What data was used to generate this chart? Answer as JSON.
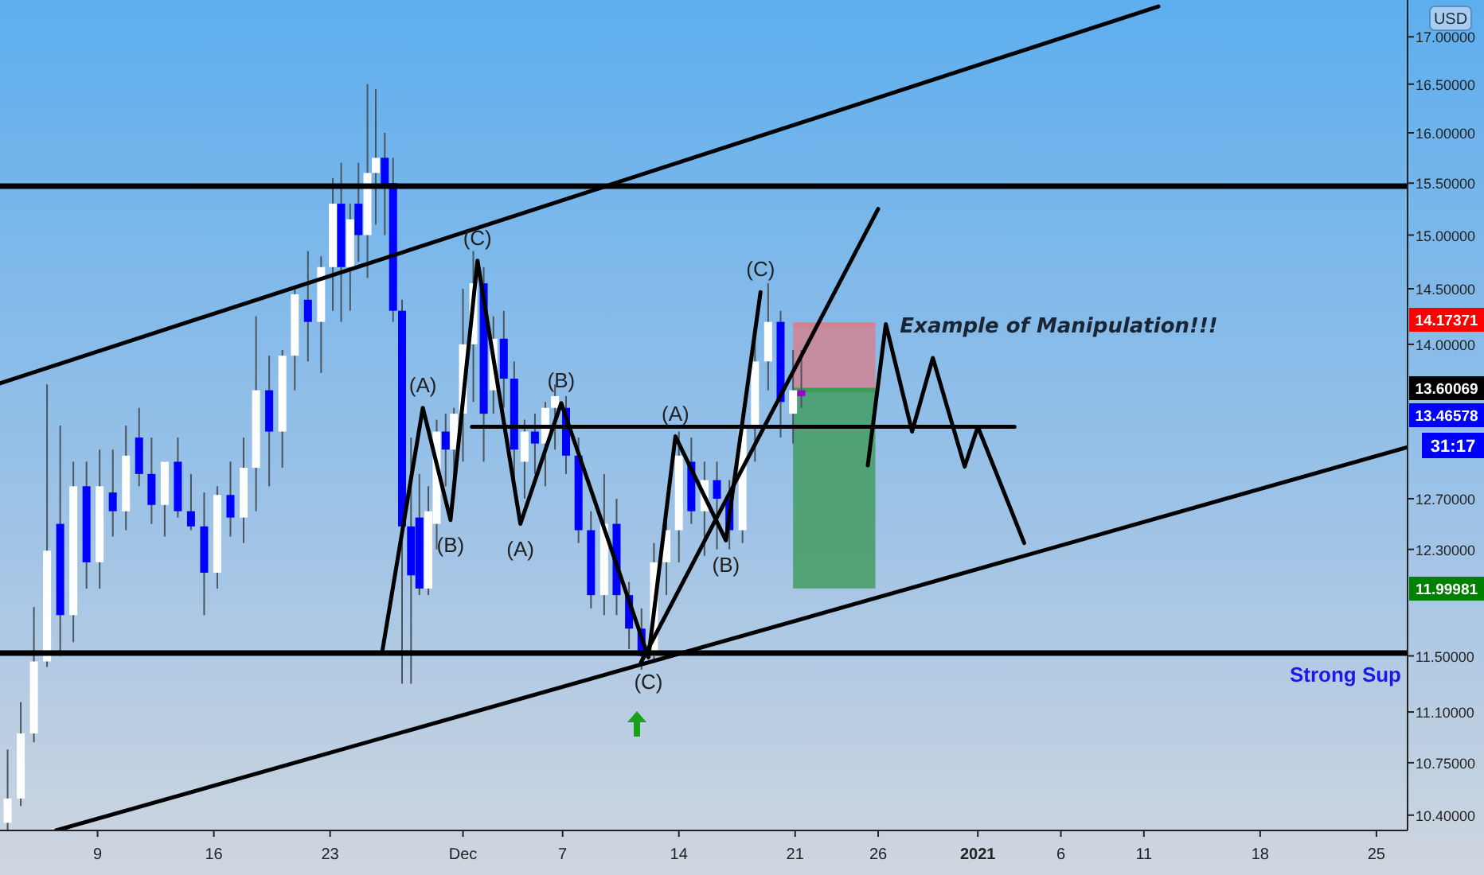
{
  "chart_data": {
    "type": "candlestick",
    "log": true,
    "xlim": [
      "2020-11-03T03:00",
      "2021-01-26T21:00"
    ],
    "ylim": [
      10.3,
      17.4
    ],
    "xticks": [
      {
        "value": "2020-11-09",
        "label": "9"
      },
      {
        "value": "2020-11-16",
        "label": "16"
      },
      {
        "value": "2020-11-23",
        "label": "23"
      },
      {
        "value": "2020-12-01",
        "label": "Dec"
      },
      {
        "value": "2020-12-07",
        "label": "7"
      },
      {
        "value": "2020-12-14",
        "label": "14"
      },
      {
        "value": "2020-12-21",
        "label": "21"
      },
      {
        "value": "2020-12-26",
        "label": "26"
      },
      {
        "value": "2021-01-01",
        "label": "2021"
      },
      {
        "value": "2021-01-06",
        "label": "6"
      },
      {
        "value": "2021-01-11",
        "label": "11"
      },
      {
        "value": "2021-01-18",
        "label": "18"
      },
      {
        "value": "2021-01-25",
        "label": "25"
      }
    ],
    "yticks": [
      {
        "value": 10.4,
        "label": "10.40000"
      },
      {
        "value": 10.75,
        "label": "10.75000"
      },
      {
        "value": 11.1,
        "label": "11.10000"
      },
      {
        "value": 11.5,
        "label": "11.50000"
      },
      {
        "value": 12.3,
        "label": "12.30000"
      },
      {
        "value": 12.7,
        "label": "12.70000"
      },
      {
        "value": 14,
        "label": "14.00000"
      },
      {
        "value": 14.5,
        "label": "14.50000"
      },
      {
        "value": 15,
        "label": "15.00000"
      },
      {
        "value": 15.5,
        "label": "15.50000"
      },
      {
        "value": 16,
        "label": "16.00000"
      },
      {
        "value": 16.5,
        "label": "16.50000"
      },
      {
        "value": 17,
        "label": "17.00000"
      }
    ],
    "ref_lines": [
      {
        "axis": "y",
        "value": 15.47,
        "color": "#000000"
      },
      {
        "axis": "y",
        "value": 11.52,
        "color": "#000000",
        "label": "Strong Sup"
      }
    ],
    "series": [
      {
        "x": [
          "2020-11-03T14:00",
          "2020-11-04T09:00",
          "2020-11-05T04:00",
          "2020-11-05T23:00",
          "2020-11-06T18:00",
          "2020-11-07T13:00",
          "2020-11-08T08:00",
          "2020-11-09T03:00",
          "2020-11-09T22:00",
          "2020-11-10T17:00",
          "2020-11-11T12:00",
          "2020-11-12T06:00",
          "2020-11-13T01:00",
          "2020-11-13T20:00",
          "2020-11-14T15:00",
          "2020-11-15T10:00",
          "2020-11-16T05:00",
          "2020-11-17T00:00",
          "2020-11-17T19:00",
          "2020-11-18T13:00",
          "2020-11-19T08:00",
          "2020-11-20T03:00",
          "2020-11-20T21:00",
          "2020-11-21T16:00",
          "2020-11-22T11:00",
          "2020-11-23T04:00",
          "2020-11-23T16:00",
          "2020-11-24T05:00",
          "2020-11-24T17:00",
          "2020-11-25T06:00",
          "2020-11-25T18:00",
          "2020-11-26T07:00",
          "2020-11-26T19:00",
          "2020-11-27T08:00",
          "2020-11-27T21:00",
          "2020-11-28T09:00",
          "2020-11-28T22:00",
          "2020-11-29T10:00",
          "2020-11-29T23:00",
          "2020-11-30T11:00",
          "2020-12-01T00:00",
          "2020-12-01T15:00",
          "2020-12-02T06:00",
          "2020-12-02T20:00",
          "2020-12-03T11:00",
          "2020-12-04T02:00",
          "2020-12-04T17:00",
          "2020-12-05T08:00",
          "2020-12-05T23:00",
          "2020-12-06T13:00",
          "2020-12-07T05:00",
          "2020-12-07T23:00",
          "2020-12-08T17:00",
          "2020-12-09T12:00",
          "2020-12-10T06:00",
          "2020-12-11T00:00",
          "2020-12-11T18:00",
          "2020-12-12T12:00",
          "2020-12-13T06:00",
          "2020-12-14T00:00",
          "2020-12-14T18:00",
          "2020-12-15T13:00",
          "2020-12-16T07:00",
          "2020-12-17T01:00",
          "2020-12-17T20:00",
          "2020-12-18T14:00",
          "2020-12-19T09:00",
          "2020-12-20T03:00",
          "2020-12-20T21:00",
          "2020-12-21T09:00"
        ],
        "ohlc": [
          [
            10.35,
            10.84,
            10.3,
            10.51
          ],
          [
            10.51,
            11.17,
            10.46,
            10.95
          ],
          [
            10.95,
            11.86,
            10.89,
            11.46
          ],
          [
            11.46,
            13.65,
            11.42,
            12.29
          ],
          [
            12.5,
            13.3,
            11.5,
            11.8
          ],
          [
            11.8,
            13.0,
            11.6,
            12.8
          ],
          [
            12.8,
            13.0,
            12.0,
            12.2
          ],
          [
            12.2,
            13.1,
            12.0,
            12.8
          ],
          [
            12.75,
            13.1,
            12.4,
            12.6
          ],
          [
            12.6,
            13.3,
            12.45,
            13.05
          ],
          [
            13.2,
            13.45,
            12.8,
            12.9
          ],
          [
            12.9,
            13.2,
            12.5,
            12.65
          ],
          [
            12.65,
            13.0,
            12.4,
            13.0
          ],
          [
            13.0,
            13.2,
            12.55,
            12.6
          ],
          [
            12.6,
            12.9,
            12.45,
            12.48
          ],
          [
            12.48,
            12.75,
            11.8,
            12.12
          ],
          [
            12.12,
            12.8,
            12.0,
            12.73
          ],
          [
            12.73,
            13.0,
            12.4,
            12.55
          ],
          [
            12.55,
            13.2,
            12.35,
            12.95
          ],
          [
            12.95,
            14.25,
            12.6,
            13.6
          ],
          [
            13.6,
            13.9,
            12.8,
            13.25
          ],
          [
            13.25,
            13.95,
            12.95,
            13.9
          ],
          [
            13.9,
            14.5,
            13.6,
            14.45
          ],
          [
            14.4,
            14.85,
            13.85,
            14.2
          ],
          [
            14.2,
            14.8,
            13.75,
            14.7
          ],
          [
            14.7,
            15.55,
            14.3,
            15.3
          ],
          [
            15.3,
            15.7,
            14.2,
            14.7
          ],
          [
            14.7,
            15.3,
            14.3,
            15.15
          ],
          [
            15.3,
            15.7,
            14.75,
            15.0
          ],
          [
            15.0,
            16.5,
            14.6,
            15.6
          ],
          [
            15.6,
            16.45,
            15.1,
            15.75
          ],
          [
            15.75,
            16.0,
            15.0,
            15.45
          ],
          [
            15.5,
            15.75,
            14.2,
            14.3
          ],
          [
            14.3,
            14.4,
            11.3,
            12.48
          ],
          [
            12.48,
            13.2,
            11.3,
            12.1
          ],
          [
            12.55,
            12.9,
            11.95,
            12.0
          ],
          [
            12.0,
            12.8,
            11.95,
            12.6
          ],
          [
            12.5,
            13.35,
            12.3,
            13.25
          ],
          [
            13.25,
            13.4,
            12.8,
            13.1
          ],
          [
            13.1,
            13.45,
            12.7,
            13.4
          ],
          [
            13.4,
            14.5,
            13.0,
            14.0
          ],
          [
            14.0,
            14.85,
            13.5,
            14.55
          ],
          [
            14.55,
            14.7,
            13.0,
            13.4
          ],
          [
            13.6,
            14.25,
            13.4,
            14.05
          ],
          [
            14.05,
            14.3,
            13.45,
            13.7
          ],
          [
            13.7,
            13.85,
            12.8,
            13.1
          ],
          [
            13.0,
            13.35,
            12.7,
            13.25
          ],
          [
            13.25,
            13.4,
            12.9,
            13.15
          ],
          [
            13.15,
            13.5,
            12.8,
            13.45
          ],
          [
            13.45,
            13.65,
            13.1,
            13.55
          ],
          [
            13.45,
            13.55,
            12.9,
            13.05
          ],
          [
            13.05,
            13.2,
            12.35,
            12.45
          ],
          [
            12.45,
            12.6,
            11.85,
            11.95
          ],
          [
            11.95,
            12.9,
            11.8,
            12.5
          ],
          [
            12.5,
            12.7,
            11.8,
            11.95
          ],
          [
            11.95,
            12.05,
            11.55,
            11.7
          ],
          [
            11.7,
            11.85,
            11.4,
            11.5
          ],
          [
            11.5,
            12.35,
            11.45,
            12.2
          ],
          [
            12.2,
            12.55,
            11.95,
            12.45
          ],
          [
            12.45,
            13.25,
            12.2,
            13.05
          ],
          [
            13.0,
            13.2,
            12.5,
            12.6
          ],
          [
            12.6,
            13.0,
            12.25,
            12.85
          ],
          [
            12.85,
            13.0,
            12.3,
            12.7
          ],
          [
            12.7,
            12.85,
            12.3,
            12.45
          ],
          [
            12.45,
            13.4,
            12.35,
            13.3
          ],
          [
            13.3,
            14.1,
            13.0,
            13.85
          ],
          [
            13.85,
            14.55,
            13.6,
            14.2
          ],
          [
            14.2,
            14.3,
            13.2,
            13.5
          ],
          [
            13.4,
            13.95,
            13.15,
            13.6
          ],
          [
            13.55,
            13.95,
            13.45,
            13.6
          ]
        ],
        "colors": [
          "#ffffff",
          "#ffffff",
          "#ffffff",
          "#ffffff",
          "#0000ff",
          "#ffffff",
          "#0000ff",
          "#ffffff",
          "#0000ff",
          "#ffffff",
          "#0000ff",
          "#0000ff",
          "#ffffff",
          "#0000ff",
          "#0000ff",
          "#0000ff",
          "#ffffff",
          "#0000ff",
          "#ffffff",
          "#ffffff",
          "#0000ff",
          "#ffffff",
          "#ffffff",
          "#0000ff",
          "#ffffff",
          "#ffffff",
          "#0000ff",
          "#ffffff",
          "#0000ff",
          "#ffffff",
          "#ffffff",
          "#0000ff",
          "#0000ff",
          "#0000ff",
          "#0000ff",
          "#0000ff",
          "#ffffff",
          "#ffffff",
          "#0000ff",
          "#ffffff",
          "#ffffff",
          "#ffffff",
          "#0000ff",
          "#ffffff",
          "#0000ff",
          "#0000ff",
          "#ffffff",
          "#0000ff",
          "#ffffff",
          "#ffffff",
          "#0000ff",
          "#0000ff",
          "#0000ff",
          "#ffffff",
          "#0000ff",
          "#0000ff",
          "#0000ff",
          "#ffffff",
          "#ffffff",
          "#ffffff",
          "#0000ff",
          "#ffffff",
          "#0000ff",
          "#0000ff",
          "#ffffff",
          "#ffffff",
          "#ffffff",
          "#0000ff",
          "#ffffff",
          "#9900cc"
        ]
      },
      {
        "type": "line",
        "x": [
          "2020-12-20T21:00",
          "2020-12-25T20:00"
        ],
        "values": [
          14.17371,
          14.17371
        ],
        "upper": [
          14.17371,
          14.17371
        ],
        "lower": [
          13.60069,
          13.60069
        ],
        "color": "#d4808e"
      },
      {
        "type": "line",
        "x": [
          "2020-12-20T21:00",
          "2020-12-25T20:00"
        ],
        "values": [
          13.60069,
          13.60069
        ],
        "upper": [
          13.60069,
          13.60069
        ],
        "lower": [
          11.99981,
          11.99981
        ],
        "color": "#3f9a5a"
      },
      {
        "type": "line",
        "x": [
          "2020-11-03T03:00",
          "2021-01-11T21:00"
        ],
        "values": [
          13.66,
          17.33
        ],
        "color": "#000000"
      },
      {
        "type": "line",
        "x": [
          "2020-11-06T12:00",
          "2021-01-26T21:00"
        ],
        "values": [
          10.3,
          13.12
        ],
        "color": "#000000"
      },
      {
        "type": "line",
        "x": [
          "2020-12-11T17:00",
          "2020-12-26T00:00"
        ],
        "values": [
          11.45,
          15.25
        ],
        "color": "#000000"
      },
      {
        "type": "line",
        "x": [
          "2020-12-01T13:00",
          "2021-01-03T05:00"
        ],
        "values": [
          13.29,
          13.29
        ],
        "color": "#000000"
      },
      {
        "type": "line",
        "x": [
          "2020-11-26T03:00",
          "2020-11-28T14:00",
          "2020-11-30T06:00",
          "2020-12-01T21:00",
          "2020-12-04T11:00",
          "2020-12-06T22:00",
          "2020-12-12T04:00",
          "2020-12-13T19:00",
          "2020-12-16T20:00",
          "2020-12-18T22:00"
        ],
        "values": [
          11.52,
          13.45,
          12.53,
          14.76,
          12.5,
          13.49,
          11.49,
          13.21,
          12.37,
          14.47
        ],
        "color": "#000000"
      },
      {
        "type": "line",
        "x": [
          "2020-12-25T09:00",
          "2020-12-26T11:00",
          "2020-12-28T01:00",
          "2020-12-29T07:00",
          "2020-12-31T05:00",
          "2021-01-01T00:00",
          "2021-01-03T19:00"
        ],
        "values": [
          12.97,
          14.18,
          13.25,
          13.88,
          12.96,
          13.29,
          12.35
        ],
        "color": "#000000"
      }
    ],
    "annotations": [
      "USD",
      "31:17",
      "Example of Manipulation!!!",
      "14.17371",
      "13.60069",
      "13.46578",
      "11.99981",
      {
        "text": "(A)",
        "x": "2020-11-28T14:00",
        "y": 13.45
      },
      {
        "text": "(B)",
        "x": "2020-11-30T06:00",
        "y": 12.53
      },
      {
        "text": "(C)",
        "x": "2020-12-01T21:00",
        "y": 14.76
      },
      {
        "text": "(A)",
        "x": "2020-12-04T11:00",
        "y": 12.5
      },
      {
        "text": "(B)",
        "x": "2020-12-06T22:00",
        "y": 13.49
      },
      {
        "text": "(C)",
        "x": "2020-12-12T04:00",
        "y": 11.49
      },
      {
        "text": "(A)",
        "x": "2020-12-13T19:00",
        "y": 13.21
      },
      {
        "text": "(B)",
        "x": "2020-12-16T20:00",
        "y": 12.37
      },
      {
        "text": "(C)",
        "x": "2020-12-18T22:00",
        "y": 14.47
      }
    ]
  }
}
